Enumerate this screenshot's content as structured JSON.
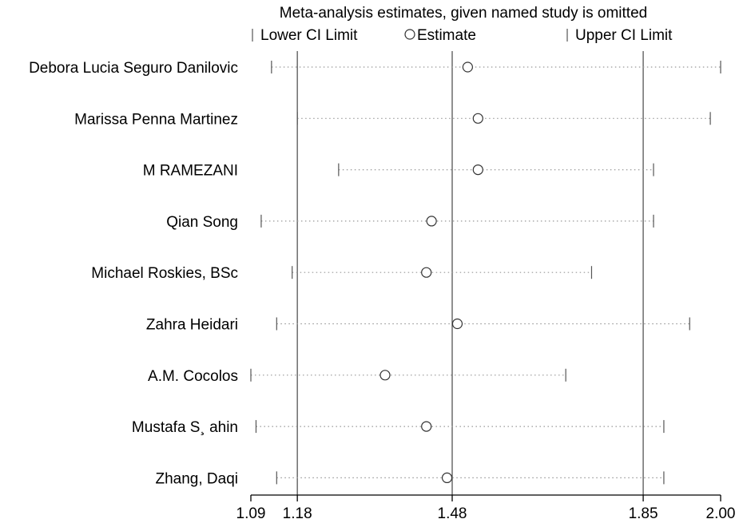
{
  "chart_data": {
    "type": "scatter",
    "title": "Meta-analysis estimates, given named study is omitted",
    "legend": {
      "placement": "top",
      "lower": "Lower CI Limit",
      "estimate": "Estimate",
      "upper": "Upper CI Limit"
    },
    "xlim": [
      1.09,
      2.0
    ],
    "xticks": [
      {
        "value": 1.09,
        "label": "1.09"
      },
      {
        "value": 1.18,
        "label": "1.18"
      },
      {
        "value": 1.48,
        "label": "1.48"
      },
      {
        "value": 1.85,
        "label": "1.85"
      },
      {
        "value": 2.0,
        "label": "2.00"
      }
    ],
    "reference_lines": [
      1.18,
      1.48,
      1.85
    ],
    "studies": [
      {
        "name": "Debora Lucia Seguro Danilovic",
        "lower": 1.13,
        "estimate": 1.51,
        "upper": 2.0
      },
      {
        "name": "Marissa Penna Martinez",
        "lower": 1.18,
        "estimate": 1.53,
        "upper": 1.98
      },
      {
        "name": "M RAMEZANI",
        "lower": 1.26,
        "estimate": 1.53,
        "upper": 1.87
      },
      {
        "name": "Qian Song",
        "lower": 1.11,
        "estimate": 1.44,
        "upper": 1.87
      },
      {
        "name": "Michael Roskies, BSc",
        "lower": 1.17,
        "estimate": 1.43,
        "upper": 1.75
      },
      {
        "name": "Zahra Heidari",
        "lower": 1.14,
        "estimate": 1.49,
        "upper": 1.94
      },
      {
        "name": "A.M. Cocolos",
        "lower": 1.09,
        "estimate": 1.35,
        "upper": 1.7
      },
      {
        "name": "Mustafa S¸ ahin",
        "lower": 1.1,
        "estimate": 1.43,
        "upper": 1.89
      },
      {
        "name": "Zhang, Daqi",
        "lower": 1.14,
        "estimate": 1.47,
        "upper": 1.89
      }
    ]
  }
}
